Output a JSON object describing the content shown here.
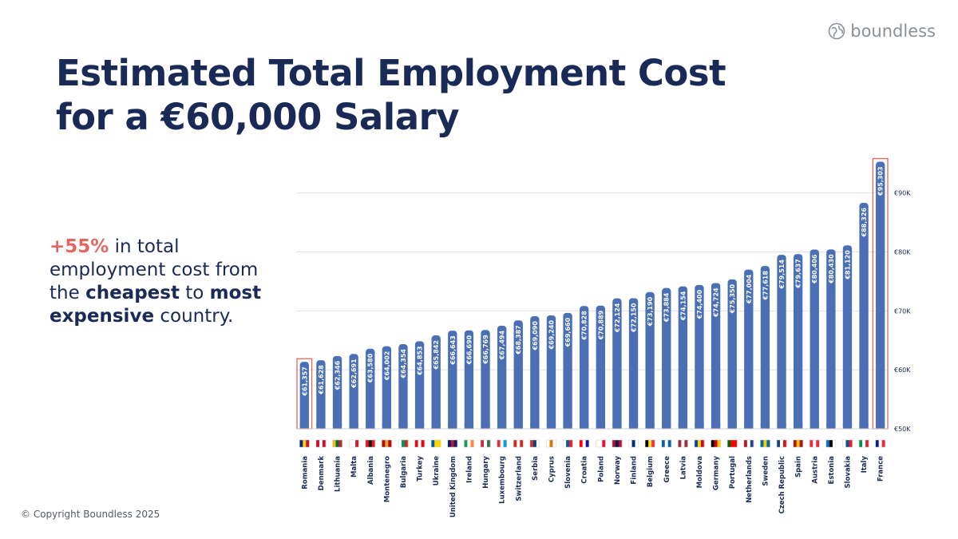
{
  "brand": {
    "name": "boundless",
    "icon": "globe-logo-icon"
  },
  "title": {
    "line1": "Estimated Total Employment Cost",
    "line2": "for a €60,000 Salary"
  },
  "callout": {
    "highlight": "+55%",
    "text1": " in total employment cost from the ",
    "strong1": "cheapest",
    "text2": " to ",
    "strong2": "most expensive",
    "text3": " country."
  },
  "copyright": "© Copyright Boundless 2025",
  "colors": {
    "bar": "#4a6fb5",
    "highlight_box": "#e3675f",
    "text": "#1a2a56",
    "grid": "#e3e3e3"
  },
  "chart_data": {
    "type": "bar",
    "title": "Estimated Total Employment Cost for a €60,000 Salary",
    "xlabel": "",
    "ylabel": "",
    "ylim": [
      50000,
      97000
    ],
    "yticks": [
      50000,
      60000,
      70000,
      80000,
      90000
    ],
    "ytick_labels": [
      "€50K",
      "€60K",
      "€70K",
      "€80K",
      "€90K"
    ],
    "grid": true,
    "highlighted": [
      "Romania",
      "France"
    ],
    "categories": [
      "Romania",
      "Denmark",
      "Lithuania",
      "Malta",
      "Albania",
      "Montenegro",
      "Bulgaria",
      "Turkey",
      "Ukraine",
      "United Kingdom",
      "Ireland",
      "Hungary",
      "Luxembourg",
      "Switzerland",
      "Serbia",
      "Cyprus",
      "Slovenia",
      "Croatia",
      "Poland",
      "Norway",
      "Finland",
      "Belgium",
      "Greece",
      "Latvia",
      "Moldova",
      "Germany",
      "Portugal",
      "Netherlands",
      "Sweden",
      "Czech Republic",
      "Spain",
      "Austria",
      "Estonia",
      "Slovakia",
      "Italy",
      "France"
    ],
    "values": [
      61357,
      61628,
      62346,
      62691,
      63580,
      64002,
      64354,
      64853,
      65842,
      66643,
      66690,
      66769,
      67494,
      68387,
      69090,
      69240,
      69660,
      70828,
      70889,
      72124,
      72150,
      73190,
      73884,
      74154,
      74400,
      74724,
      75350,
      77004,
      77618,
      79514,
      79637,
      80406,
      80430,
      81120,
      88326,
      95303
    ],
    "value_labels": [
      "€61,357",
      "€61,628",
      "€62,346",
      "€62,691",
      "€63,580",
      "€64,002",
      "€64,354",
      "€64,853",
      "€65,842",
      "€66,643",
      "€66,690",
      "€66,769",
      "€67,494",
      "€68,387",
      "€69,090",
      "€69,240",
      "€69,660",
      "€70,828",
      "€70,889",
      "€72,124",
      "€72,150",
      "€73,190",
      "€73,884",
      "€74,154",
      "€74,400",
      "€74,724",
      "€75,350",
      "€77,004",
      "€77,618",
      "€79,514",
      "€79,637",
      "€80,406",
      "€80,430",
      "€81,120",
      "€88,326",
      "€95,303"
    ],
    "flags": [
      [
        "#002b7f",
        "#fcd116",
        "#ce1126"
      ],
      [
        "#c8102e",
        "#ffffff",
        "#c8102e"
      ],
      [
        "#fdb913",
        "#006a44",
        "#c1272d"
      ],
      [
        "#ffffff",
        "#ffffff",
        "#cf142b"
      ],
      [
        "#e41e20",
        "#1a1a1a",
        "#e41e20"
      ],
      [
        "#c40308",
        "#d4af37",
        "#c40308"
      ],
      [
        "#ffffff",
        "#00966e",
        "#d62612"
      ],
      [
        "#e30a17",
        "#ffffff",
        "#e30a17"
      ],
      [
        "#0057b7",
        "#ffd700",
        "#ffd700"
      ],
      [
        "#012169",
        "#c8102e",
        "#012169"
      ],
      [
        "#169b62",
        "#ffffff",
        "#ff883e"
      ],
      [
        "#cd2a3e",
        "#ffffff",
        "#436f4d"
      ],
      [
        "#ed2939",
        "#ffffff",
        "#00a1de"
      ],
      [
        "#d52b1e",
        "#ffffff",
        "#d52b1e"
      ],
      [
        "#c6363c",
        "#0c4076",
        "#ffffff"
      ],
      [
        "#ffffff",
        "#d57800",
        "#ffffff"
      ],
      [
        "#ffffff",
        "#005da4",
        "#ed1c24"
      ],
      [
        "#ff0000",
        "#ffffff",
        "#171796"
      ],
      [
        "#ffffff",
        "#ffffff",
        "#dc143c"
      ],
      [
        "#ba0c2f",
        "#00205b",
        "#ba0c2f"
      ],
      [
        "#ffffff",
        "#002f6c",
        "#ffffff"
      ],
      [
        "#000000",
        "#fdda24",
        "#ef3340"
      ],
      [
        "#0d5eaf",
        "#ffffff",
        "#0d5eaf"
      ],
      [
        "#9e3039",
        "#ffffff",
        "#9e3039"
      ],
      [
        "#0046ae",
        "#ffd200",
        "#cc092f"
      ],
      [
        "#000000",
        "#dd0000",
        "#ffce00"
      ],
      [
        "#006600",
        "#ff0000",
        "#ff0000"
      ],
      [
        "#ae1c28",
        "#ffffff",
        "#21468b"
      ],
      [
        "#006aa7",
        "#fecc00",
        "#006aa7"
      ],
      [
        "#11457e",
        "#ffffff",
        "#d7141a"
      ],
      [
        "#aa151b",
        "#f1bf00",
        "#aa151b"
      ],
      [
        "#ed2939",
        "#ffffff",
        "#ed2939"
      ],
      [
        "#0072ce",
        "#000000",
        "#ffffff"
      ],
      [
        "#ffffff",
        "#0b4ea2",
        "#ee1c25"
      ],
      [
        "#009246",
        "#ffffff",
        "#ce2b37"
      ],
      [
        "#002395",
        "#ffffff",
        "#ed2939"
      ]
    ]
  }
}
